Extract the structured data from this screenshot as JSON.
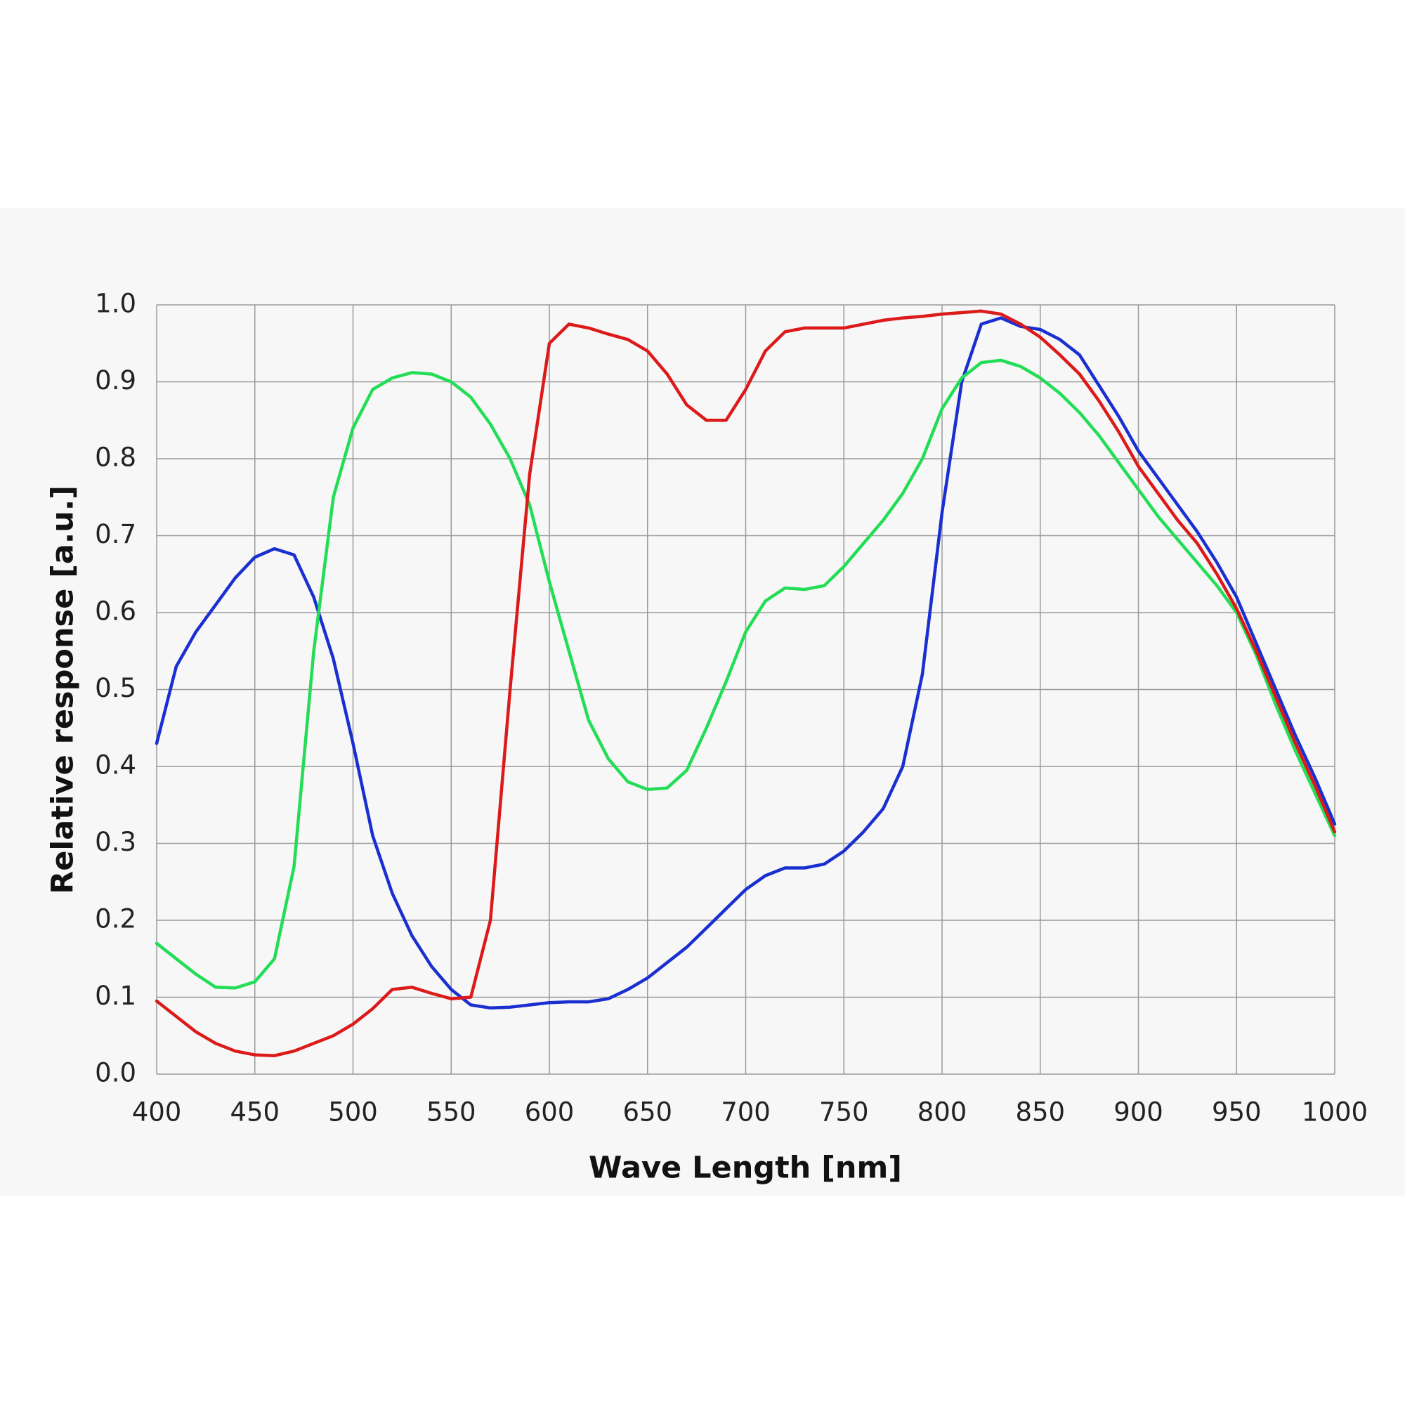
{
  "chart_data": {
    "type": "line",
    "xlabel": "Wave Length [nm]",
    "ylabel": "Relative response  [a.u.]",
    "x": [
      400,
      410,
      420,
      430,
      440,
      450,
      460,
      470,
      480,
      490,
      500,
      510,
      520,
      530,
      540,
      550,
      560,
      570,
      580,
      590,
      600,
      610,
      620,
      630,
      640,
      650,
      660,
      670,
      680,
      690,
      700,
      710,
      720,
      730,
      740,
      750,
      760,
      770,
      780,
      790,
      800,
      810,
      820,
      830,
      840,
      850,
      860,
      870,
      880,
      890,
      900,
      910,
      920,
      930,
      940,
      950,
      960,
      970,
      980,
      990,
      1000
    ],
    "series": [
      {
        "color": "#1a2fd0",
        "values": [
          0.43,
          0.53,
          0.575,
          0.61,
          0.645,
          0.672,
          0.683,
          0.675,
          0.62,
          0.54,
          0.43,
          0.31,
          0.235,
          0.18,
          0.14,
          0.11,
          0.09,
          0.086,
          0.087,
          0.09,
          0.093,
          0.094,
          0.094,
          0.098,
          0.11,
          0.125,
          0.145,
          0.165,
          0.19,
          0.215,
          0.24,
          0.258,
          0.268,
          0.268,
          0.273,
          0.29,
          0.315,
          0.345,
          0.4,
          0.52,
          0.73,
          0.9,
          0.975,
          0.983,
          0.972,
          0.968,
          0.955,
          0.935,
          0.895,
          0.855,
          0.81,
          0.775,
          0.74,
          0.705,
          0.665,
          0.62,
          0.56,
          0.5,
          0.44,
          0.385,
          0.325
        ]
      },
      {
        "color": "#22dd55",
        "values": [
          0.17,
          0.15,
          0.13,
          0.113,
          0.112,
          0.12,
          0.15,
          0.27,
          0.55,
          0.75,
          0.84,
          0.89,
          0.905,
          0.912,
          0.91,
          0.9,
          0.88,
          0.845,
          0.8,
          0.74,
          0.64,
          0.55,
          0.46,
          0.41,
          0.38,
          0.37,
          0.372,
          0.395,
          0.45,
          0.51,
          0.575,
          0.615,
          0.632,
          0.63,
          0.635,
          0.66,
          0.69,
          0.72,
          0.755,
          0.8,
          0.865,
          0.905,
          0.925,
          0.928,
          0.92,
          0.905,
          0.885,
          0.86,
          0.83,
          0.795,
          0.76,
          0.725,
          0.695,
          0.665,
          0.635,
          0.6,
          0.545,
          0.48,
          0.42,
          0.365,
          0.31
        ]
      },
      {
        "color": "#dd1a1a",
        "values": [
          0.095,
          0.075,
          0.055,
          0.04,
          0.03,
          0.025,
          0.024,
          0.03,
          0.04,
          0.05,
          0.065,
          0.085,
          0.11,
          0.113,
          0.105,
          0.098,
          0.1,
          0.2,
          0.5,
          0.78,
          0.95,
          0.975,
          0.97,
          0.962,
          0.955,
          0.94,
          0.91,
          0.87,
          0.85,
          0.85,
          0.89,
          0.94,
          0.965,
          0.97,
          0.97,
          0.97,
          0.975,
          0.98,
          0.983,
          0.985,
          0.988,
          0.99,
          0.992,
          0.988,
          0.975,
          0.958,
          0.935,
          0.91,
          0.875,
          0.835,
          0.79,
          0.755,
          0.72,
          0.69,
          0.65,
          0.605,
          0.55,
          0.49,
          0.43,
          0.375,
          0.315
        ]
      }
    ],
    "xlim": [
      400,
      1000
    ],
    "xticks": [
      400,
      450,
      500,
      550,
      600,
      650,
      700,
      750,
      800,
      850,
      900,
      950,
      1000
    ],
    "ylim": [
      0,
      1
    ],
    "yticks": [
      {
        "value": 0,
        "label": "0.0"
      },
      0.1,
      0.2,
      0.3,
      0.4,
      0.5,
      0.6,
      0.7,
      0.8,
      0.9,
      {
        "value": 1,
        "label": "1.0"
      }
    ],
    "grid": true
  }
}
